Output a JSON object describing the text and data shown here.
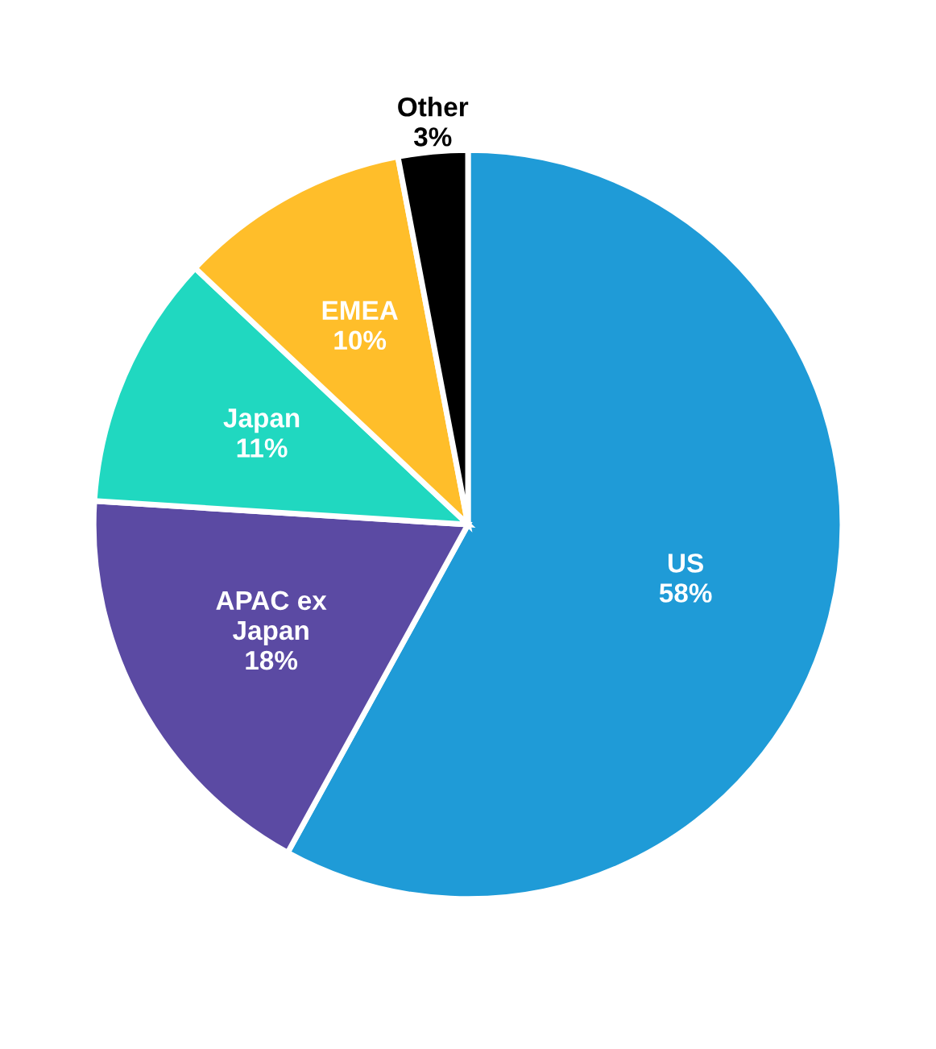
{
  "chart_data": {
    "type": "pie",
    "categories": [
      "US",
      "APAC ex Japan",
      "Japan",
      "EMEA",
      "Other"
    ],
    "values": [
      58,
      18,
      11,
      10,
      3
    ],
    "colors": [
      "#1f9bd7",
      "#5b4aa3",
      "#20d8c0",
      "#ffbe2a",
      "#000000"
    ],
    "value_labels": [
      "58%",
      "18%",
      "11%",
      "10%",
      "3%"
    ]
  }
}
